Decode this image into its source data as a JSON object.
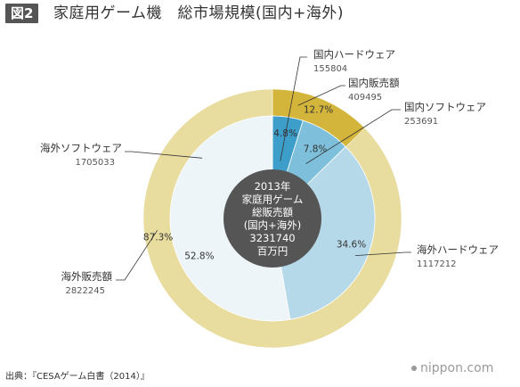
{
  "header": {
    "figure_label": "図2",
    "title": "家庭用ゲーム機　総市場規模(国内+海外)"
  },
  "footer": {
    "source": "出典：『CESAゲーム白書（2014）』",
    "publisher": "nippon.com"
  },
  "colors": {
    "domestic_outer": "#d4b53c",
    "overseas_outer": "#e8dc9f",
    "domestic_hardware": "#3d9ec9",
    "domestic_software": "#7ec0dc",
    "overseas_hardware": "#b6d9ea",
    "overseas_software": "#edf5f9",
    "center": "#555555",
    "leader": "#333333"
  },
  "chart_data": {
    "type": "pie",
    "center_label": [
      "2013年",
      "家庭用ゲーム",
      "総販売額",
      "(国内+海外)",
      "3231740",
      "百万円"
    ],
    "outer_ring": [
      {
        "label": "国内販売額",
        "value": 409495,
        "percent_label": "12.7%"
      },
      {
        "label": "海外販売額",
        "value": 2822245,
        "percent_label": "87.3%"
      }
    ],
    "inner_ring": [
      {
        "label": "国内ハードウェア",
        "value": 155804,
        "percent_label": "4.8%"
      },
      {
        "label": "国内ソフトウェア",
        "value": 253691,
        "percent_label": "7.8%"
      },
      {
        "label": "海外ハードウェア",
        "value": 1117212,
        "percent_label": "34.6%"
      },
      {
        "label": "海外ソフトウェア",
        "value": 1705033,
        "percent_label": "52.8%"
      }
    ]
  }
}
